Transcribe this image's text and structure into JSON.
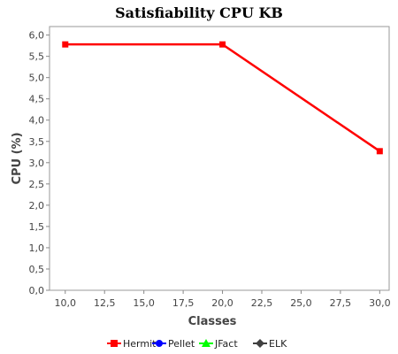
{
  "chart_data": {
    "type": "line",
    "title": "Satisfiability CPU KB",
    "xlabel": "Classes",
    "ylabel": "CPU (%)",
    "xlim": [
      9.0,
      30.6
    ],
    "ylim": [
      0.0,
      6.2
    ],
    "x_ticks": [
      "10,0",
      "12,5",
      "15,0",
      "17,5",
      "20,0",
      "22,5",
      "25,0",
      "27,5",
      "30,0"
    ],
    "x_tick_values": [
      10.0,
      12.5,
      15.0,
      17.5,
      20.0,
      22.5,
      25.0,
      27.5,
      30.0
    ],
    "y_ticks": [
      "0,0",
      "0,5",
      "1,0",
      "1,5",
      "2,0",
      "2,5",
      "3,0",
      "3,5",
      "4,0",
      "4,5",
      "5,0",
      "5,5",
      "6,0"
    ],
    "y_tick_values": [
      0.0,
      0.5,
      1.0,
      1.5,
      2.0,
      2.5,
      3.0,
      3.5,
      4.0,
      4.5,
      5.0,
      5.5,
      6.0
    ],
    "grid": false,
    "legend_position": "bottom",
    "series": [
      {
        "name": "Hermit",
        "color": "#ff0000",
        "marker": "square",
        "points": [
          {
            "x": 10,
            "y": 5.78
          },
          {
            "x": 20,
            "y": 5.78
          },
          {
            "x": 30,
            "y": 3.27
          }
        ]
      },
      {
        "name": "Pellet",
        "color": "#0000ff",
        "marker": "circle",
        "points": []
      },
      {
        "name": "JFact",
        "color": "#00ff00",
        "marker": "triangle",
        "points": []
      },
      {
        "name": "ELK",
        "color": "#404040",
        "marker": "diamond",
        "points": []
      }
    ]
  }
}
